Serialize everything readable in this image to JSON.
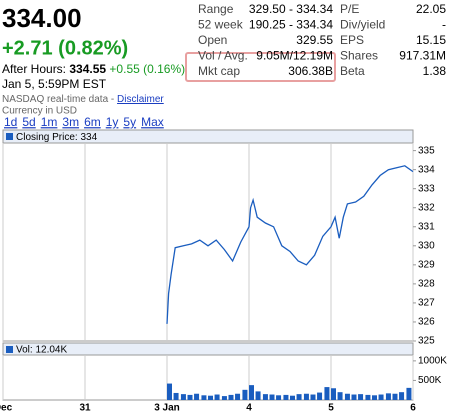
{
  "quote": {
    "price": "334.00",
    "change": "+2.71 (0.82%)",
    "after_hours_label": "After Hours:",
    "after_hours_price": "334.55",
    "after_hours_change": "+0.55 (0.16%)",
    "timestamp": "Jan 5, 5:59PM EST",
    "source": "NASDAQ real-time data -",
    "disclaimer": "Disclaimer",
    "currency": "Currency in USD"
  },
  "stats": {
    "rows": [
      [
        "Range",
        "329.50 - 334.34",
        "P/E",
        "22.05"
      ],
      [
        "52 week",
        "190.25 - 334.34",
        "Div/yield",
        "-"
      ],
      [
        "Open",
        "329.55",
        "EPS",
        "15.15"
      ],
      [
        "Vol / Avg.",
        "9.05M/12.19M",
        "Shares",
        "917.31M"
      ],
      [
        "Mkt cap",
        "306.38B",
        "Beta",
        "1.38"
      ]
    ]
  },
  "ranges": [
    "1d",
    "5d",
    "1m",
    "3m",
    "6m",
    "1y",
    "5y",
    "Max"
  ],
  "chart_data": [
    {
      "type": "line",
      "legend": "Closing Price: 334",
      "color": "#1a5dbf",
      "x": [
        2,
        2.02,
        2.05,
        2.1,
        2.2,
        2.3,
        2.4,
        2.5,
        2.6,
        2.7,
        2.8,
        2.9,
        3,
        3.02,
        3.05,
        3.1,
        3.2,
        3.3,
        3.4,
        3.5,
        3.6,
        3.7,
        3.8,
        3.9,
        4,
        4.05,
        4.1,
        4.15,
        4.2,
        4.3,
        4.4,
        4.5,
        4.6,
        4.7,
        4.8,
        4.9,
        5
      ],
      "values": [
        325.9,
        327.5,
        328.5,
        329.9,
        330,
        330.1,
        330.3,
        330,
        330.3,
        329.8,
        329.2,
        330.2,
        331,
        332,
        332.4,
        331.5,
        331.2,
        331,
        330,
        329.7,
        329.2,
        329,
        329.5,
        330.5,
        331,
        331.5,
        330.4,
        331.5,
        332.2,
        332.3,
        332.6,
        333.2,
        333.7,
        334,
        334.1,
        334.2,
        333.9
      ],
      "xlim": [
        0,
        5
      ],
      "ylim": [
        325,
        335.4
      ],
      "xticks": [
        {
          "value": 0,
          "label": "Dec"
        },
        {
          "value": 1,
          "label": "31"
        },
        {
          "value": 2,
          "label": "3 Jan"
        },
        {
          "value": 3,
          "label": "4"
        },
        {
          "value": 4,
          "label": "5"
        },
        {
          "value": 5,
          "label": "6"
        }
      ],
      "yticks": [
        325,
        326,
        327,
        328,
        329,
        330,
        331,
        332,
        333,
        334,
        335
      ]
    },
    {
      "type": "bar",
      "legend": "Vol: 12.04K",
      "color": "#1a5dbf",
      "x": [
        2,
        2.08,
        2.17,
        2.25,
        2.33,
        2.42,
        2.5,
        2.58,
        2.67,
        2.75,
        2.83,
        2.92,
        3,
        3.08,
        3.17,
        3.25,
        3.33,
        3.42,
        3.5,
        3.58,
        3.67,
        3.75,
        3.83,
        3.92,
        4,
        4.08,
        4.17,
        4.25,
        4.33,
        4.42,
        4.5,
        4.58,
        4.67,
        4.75,
        4.83,
        4.92
      ],
      "values": [
        420000,
        180000,
        150000,
        130000,
        160000,
        120000,
        110000,
        140000,
        100000,
        130000,
        160000,
        260000,
        380000,
        220000,
        150000,
        140000,
        120000,
        130000,
        110000,
        150000,
        160000,
        140000,
        190000,
        330000,
        300000,
        200000,
        160000,
        140000,
        150000,
        130000,
        120000,
        140000,
        170000,
        160000,
        200000,
        310000
      ],
      "xlim": [
        0,
        5
      ],
      "ylim": [
        0,
        1150000
      ],
      "yticks": [
        {
          "value": 500000,
          "label": "500K"
        },
        {
          "value": 1000000,
          "label": "1000K"
        }
      ]
    }
  ]
}
